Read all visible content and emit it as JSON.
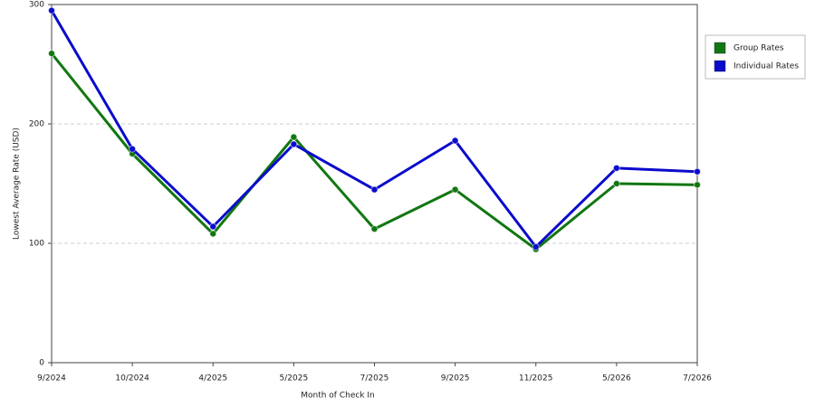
{
  "chart_data": {
    "type": "line",
    "x_label": "Month of Check In",
    "y_label": "Lowest Average Rate (USD)",
    "categories": [
      "9/2024",
      "10/2024",
      "4/2025",
      "5/2025",
      "7/2025",
      "9/2025",
      "11/2025",
      "5/2026",
      "7/2026"
    ],
    "series": [
      {
        "name": "Group Rates",
        "color": "#117711",
        "values": [
          259,
          175,
          108,
          189,
          112,
          145,
          95,
          150,
          149
        ]
      },
      {
        "name": "Individual Rates",
        "color": "#0b0bcc",
        "values": [
          295,
          179,
          114,
          183,
          145,
          186,
          97,
          163,
          160
        ]
      }
    ],
    "ylim": [
      0,
      300
    ],
    "yticks": [
      0,
      100,
      200,
      300
    ],
    "grid": true,
    "legend": "right"
  }
}
